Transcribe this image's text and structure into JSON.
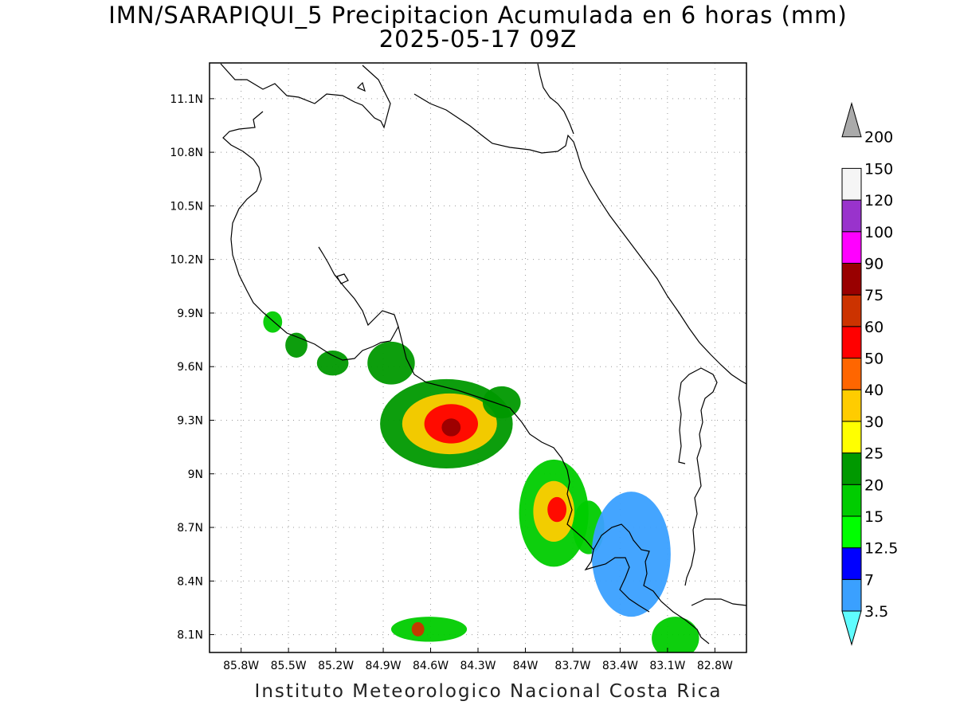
{
  "title_line1": "IMN/SARAPIQUI_5 Precipitacion Acumulada en 6 horas (mm)",
  "title_line2": "2025-05-17 09Z",
  "credit": "Instituto Meteorologico Nacional Costa Rica",
  "map": {
    "lat_ticks": [
      "11.1N",
      "10.8N",
      "10.5N",
      "10.2N",
      "9.9N",
      "9.6N",
      "9.3N",
      "9N",
      "8.7N",
      "8.4N",
      "8.1N"
    ],
    "lon_ticks": [
      "85.8W",
      "85.5W",
      "85.2W",
      "84.9W",
      "84.6W",
      "84.3W",
      "84W",
      "83.7W",
      "83.4W",
      "83.1W",
      "82.8W"
    ],
    "lat_values": [
      11.1,
      10.8,
      10.5,
      10.2,
      9.9,
      9.6,
      9.3,
      9.0,
      8.7,
      8.4,
      8.1
    ],
    "lon_values": [
      -85.8,
      -85.5,
      -85.2,
      -84.9,
      -84.6,
      -84.3,
      -84.0,
      -83.7,
      -83.4,
      -83.1,
      -82.8
    ],
    "precip_cells": [
      {
        "lon": -84.5,
        "lat": 9.28,
        "rx": 0.42,
        "ry": 0.25,
        "level": 25
      },
      {
        "lon": -84.48,
        "lat": 9.28,
        "rx": 0.3,
        "ry": 0.17,
        "level": 40
      },
      {
        "lon": -84.47,
        "lat": 9.28,
        "rx": 0.17,
        "ry": 0.11,
        "level": 60
      },
      {
        "lon": -84.47,
        "lat": 9.26,
        "rx": 0.06,
        "ry": 0.05,
        "level": 90
      },
      {
        "lon": -83.82,
        "lat": 8.78,
        "rx": 0.22,
        "ry": 0.3,
        "level": 20
      },
      {
        "lon": -83.82,
        "lat": 8.79,
        "rx": 0.13,
        "ry": 0.17,
        "level": 40
      },
      {
        "lon": -83.8,
        "lat": 8.8,
        "rx": 0.06,
        "ry": 0.07,
        "level": 60
      },
      {
        "lon": -84.61,
        "lat": 8.13,
        "rx": 0.24,
        "ry": 0.07,
        "level": 20
      },
      {
        "lon": -84.68,
        "lat": 8.13,
        "rx": 0.04,
        "ry": 0.04,
        "level": 75
      },
      {
        "lon": -84.85,
        "lat": 9.62,
        "rx": 0.15,
        "ry": 0.12,
        "level": 25
      },
      {
        "lon": -85.6,
        "lat": 9.85,
        "rx": 0.06,
        "ry": 0.06,
        "level": 20
      },
      {
        "lon": -85.45,
        "lat": 9.72,
        "rx": 0.07,
        "ry": 0.07,
        "level": 25
      },
      {
        "lon": -84.15,
        "lat": 9.4,
        "rx": 0.12,
        "ry": 0.09,
        "level": 25
      },
      {
        "lon": -83.05,
        "lat": 8.08,
        "rx": 0.15,
        "ry": 0.12,
        "level": 20
      },
      {
        "lon": -85.22,
        "lat": 9.62,
        "rx": 0.1,
        "ry": 0.07,
        "level": 25
      },
      {
        "lon": -83.6,
        "lat": 8.7,
        "rx": 0.1,
        "ry": 0.15,
        "level": 20
      },
      {
        "lon": -83.33,
        "lat": 8.55,
        "rx": 0.25,
        "ry": 0.35,
        "level": 7
      }
    ]
  },
  "legend": {
    "levels": [
      "3.5",
      "7",
      "12.5",
      "15",
      "20",
      "25",
      "30",
      "40",
      "50",
      "60",
      "75",
      "90",
      "100",
      "120",
      "150",
      "200"
    ],
    "colors": [
      "#5ffcff",
      "#3aa0ff",
      "#0000ff",
      "#00ff00",
      "#00cc00",
      "#009900",
      "#ffff00",
      "#ffcc00",
      "#ff6600",
      "#ff0000",
      "#cc3300",
      "#990000",
      "#ff00ff",
      "#9933cc",
      "#f5f5f5",
      "#aaaaaa"
    ]
  }
}
